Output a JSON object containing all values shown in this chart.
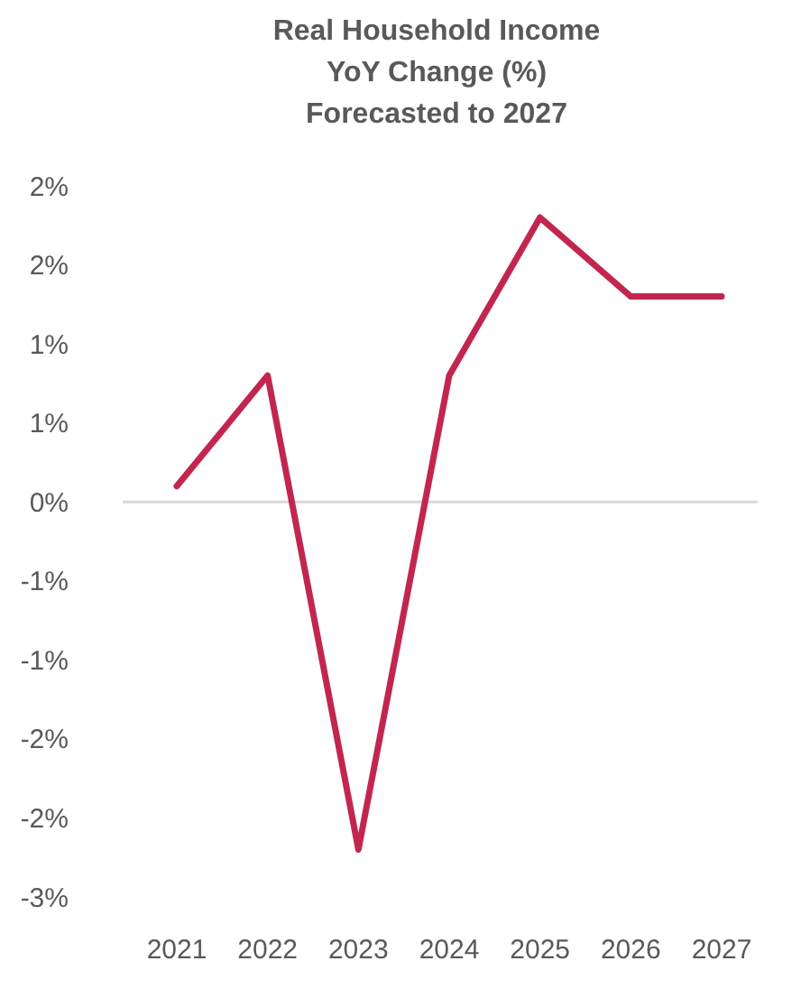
{
  "chart_data": {
    "type": "line",
    "title": "Real Household Income\nYoY Change (%)\nForecasted to 2027",
    "categories": [
      "2021",
      "2022",
      "2023",
      "2024",
      "2025",
      "2026",
      "2027"
    ],
    "series": [
      {
        "color": "#c2264f",
        "values": [
          0.1,
          0.8,
          -2.2,
          0.8,
          1.8,
          1.3,
          1.3
        ]
      }
    ],
    "ylim": [
      -2.5,
      2.0
    ],
    "yticks": [
      {
        "value": 2.0,
        "label": "2%"
      },
      {
        "value": 1.5,
        "label": "2%"
      },
      {
        "value": 1.0,
        "label": "1%"
      },
      {
        "value": 0.5,
        "label": "1%"
      },
      {
        "value": 0,
        "label": "0%"
      },
      {
        "value": -0.5,
        "label": "-1%"
      },
      {
        "value": -1.0,
        "label": "-1%"
      },
      {
        "value": -1.5,
        "label": "-2%"
      },
      {
        "value": -2.0,
        "label": "-2%"
      },
      {
        "value": -2.5,
        "label": "-3%"
      }
    ],
    "ref_lines": [
      {
        "axis": "y",
        "value": 0,
        "color": "#d9d9d9"
      }
    ],
    "marker": "none",
    "line_style": "solid"
  }
}
